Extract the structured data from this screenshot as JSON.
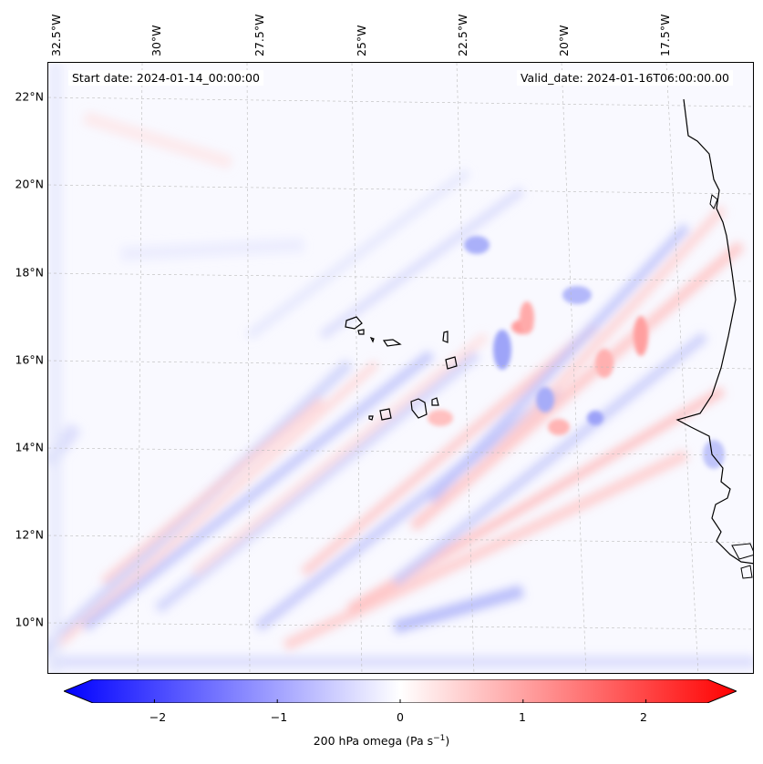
{
  "header": {
    "start_date": "Start date: 2024-01-14_00:00:00",
    "valid_date": "Valid_date: 2024-01-16T06:00:00.00"
  },
  "lon_labels": [
    "32.5°W",
    "30°W",
    "27.5°W",
    "25°W",
    "22.5°W",
    "20°W",
    "17.5°W"
  ],
  "lat_labels": [
    "22°N",
    "20°N",
    "18°N",
    "16°N",
    "14°N",
    "12°N",
    "10°N"
  ],
  "colorbar": {
    "ticks": [
      "−2",
      "−1",
      "0",
      "1",
      "2"
    ],
    "tick_values": [
      -2,
      -1,
      0,
      1,
      2
    ],
    "range": [
      -2.5,
      2.5
    ],
    "label_main": "200 hPa omega (Pa s",
    "label_exp": "−1",
    "label_end": ")",
    "colors": {
      "negative": "#0000ff",
      "zero": "#ffffff",
      "positive": "#ff0000"
    }
  }
}
